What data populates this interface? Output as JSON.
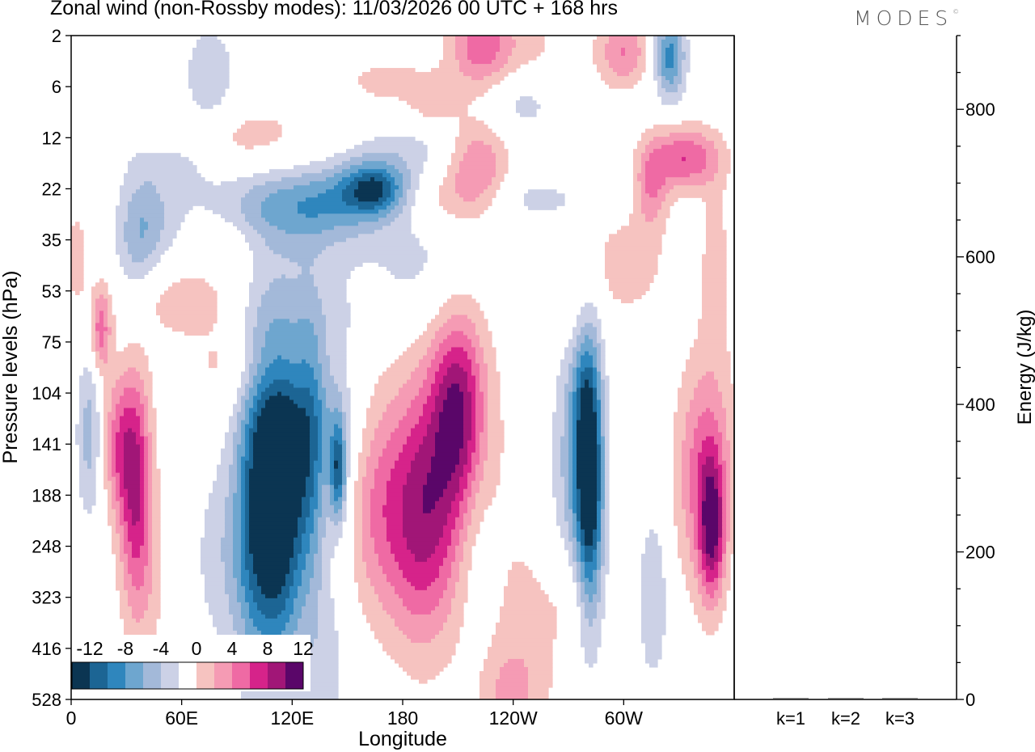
{
  "header": {
    "title": "Zonal wind (non-Rossby modes):  11/03/2026  00 UTC  + 168 hrs",
    "brand": "MODES",
    "brand_mark": "©"
  },
  "chart_data": [
    {
      "type": "heatmap",
      "title": "Zonal wind (non-Rossby modes):  11/03/2026  00 UTC  + 168 hrs",
      "xlabel": "Longitude",
      "ylabel": "Pressure levels (hPa)",
      "x_ticks": [
        {
          "label": "0",
          "lon": 0
        },
        {
          "label": "60E",
          "lon": 60
        },
        {
          "label": "120E",
          "lon": 120
        },
        {
          "label": "180",
          "lon": 180
        },
        {
          "label": "120W",
          "lon": 240
        },
        {
          "label": "60W",
          "lon": 300
        }
      ],
      "xlim": [
        0,
        360
      ],
      "y_levels": [
        "2",
        "6",
        "12",
        "22",
        "35",
        "53",
        "75",
        "104",
        "141",
        "188",
        "248",
        "323",
        "416",
        "528"
      ],
      "colorbar": {
        "labels": [
          "-12",
          "-8",
          "-4",
          "0",
          "4",
          "8",
          "12"
        ],
        "bins": [
          -14,
          -12,
          -10,
          -8,
          -6,
          -4,
          -2,
          2,
          4,
          6,
          8,
          10,
          12,
          14
        ],
        "colors": [
          "#0b3552",
          "#1c6594",
          "#2f86bd",
          "#6ea6cf",
          "#a3b9d9",
          "#ccd1e6",
          "#ffffff",
          "#f6c3c0",
          "#f59bb4",
          "#ef6aa4",
          "#d6238a",
          "#a11677",
          "#5a0669"
        ]
      },
      "blobs": [
        {
          "lon": 145,
          "lev": 8.5,
          "v": -10,
          "w": 3,
          "h": 0.7
        },
        {
          "lon": 114,
          "lev": 9.0,
          "v": -13,
          "w": 9,
          "h": 2.2
        },
        {
          "lon": 100,
          "lev": 8.8,
          "v": -7,
          "w": 8,
          "h": 2.4
        },
        {
          "lon": 130,
          "lev": 8.0,
          "v": -6,
          "w": 6,
          "h": 2.0
        },
        {
          "lon": 92,
          "lev": 10.2,
          "v": -4,
          "w": 18,
          "h": 1.5
        },
        {
          "lon": 120,
          "lev": 7.0,
          "v": -4,
          "w": 16,
          "h": 1.6
        },
        {
          "lon": 145,
          "lev": 7.3,
          "v": -3,
          "w": 10,
          "h": 1.8
        },
        {
          "lon": 138,
          "lev": 12.5,
          "v": -3,
          "w": 9,
          "h": 1.4
        },
        {
          "lon": 10,
          "lev": 7.8,
          "v": -5,
          "w": 5,
          "h": 1.2
        },
        {
          "lon": 282,
          "lev": 8.8,
          "v": -11,
          "w": 5,
          "h": 1.8
        },
        {
          "lon": 278,
          "lev": 7.3,
          "v": -6,
          "w": 6,
          "h": 1.8
        },
        {
          "lon": 272,
          "lev": 9.0,
          "v": -4,
          "w": 10,
          "h": 2.4
        },
        {
          "lon": 316,
          "lev": 11.0,
          "v": -4,
          "w": 6,
          "h": 1.2
        },
        {
          "lon": 220,
          "lev": 9.8,
          "v": -2.5,
          "w": 8,
          "h": 1.3
        },
        {
          "lon": 165,
          "lev": 3.0,
          "v": -9,
          "w": 12,
          "h": 0.35
        },
        {
          "lon": 150,
          "lev": 3.2,
          "v": -6,
          "w": 35,
          "h": 0.5
        },
        {
          "lon": 105,
          "lev": 3.6,
          "v": -4,
          "w": 35,
          "h": 0.6
        },
        {
          "lon": 190,
          "lev": 4.5,
          "v": -3,
          "w": 22,
          "h": 1.0
        },
        {
          "lon": 35,
          "lev": 4.3,
          "v": -4,
          "w": 8,
          "h": 1.2
        },
        {
          "lon": 245,
          "lev": 1.3,
          "v": -5,
          "w": 16,
          "h": 0.5
        },
        {
          "lon": 325,
          "lev": 0.4,
          "v": -9,
          "w": 6,
          "h": 0.6
        },
        {
          "lon": 75,
          "lev": 0.9,
          "v": -4,
          "w": 10,
          "h": 0.8
        },
        {
          "lon": 55,
          "lev": 2.5,
          "v": -3,
          "w": 14,
          "h": 0.4
        },
        {
          "lon": 185,
          "lev": 2.3,
          "v": -3,
          "w": 25,
          "h": 0.45
        },
        {
          "lon": 45,
          "lev": 3.7,
          "v": -3,
          "w": 10,
          "h": 0.6
        },
        {
          "lon": 250,
          "lev": 3.2,
          "v": -3,
          "w": 20,
          "h": 0.35
        },
        {
          "lon": 190,
          "lev": 9.5,
          "v": 8,
          "w": 13,
          "h": 1.7
        },
        {
          "lon": 165,
          "lev": 9.3,
          "v": 5,
          "w": 12,
          "h": 1.5
        },
        {
          "lon": 210,
          "lev": 7.3,
          "v": 9,
          "w": 10,
          "h": 1.4
        },
        {
          "lon": 205,
          "lev": 8.5,
          "v": 4,
          "w": 22,
          "h": 2.2
        },
        {
          "lon": 35,
          "lev": 8.6,
          "v": 9,
          "w": 6,
          "h": 1.6
        },
        {
          "lon": 25,
          "lev": 8.0,
          "v": 6,
          "w": 6,
          "h": 1.0
        },
        {
          "lon": 40,
          "lev": 10.5,
          "v": 3,
          "w": 10,
          "h": 1.5
        },
        {
          "lon": 16,
          "lev": 5.8,
          "v": 7,
          "w": 4,
          "h": 0.6
        },
        {
          "lon": 348,
          "lev": 9.7,
          "v": 10,
          "w": 5,
          "h": 1.0
        },
        {
          "lon": 340,
          "lev": 8.7,
          "v": 5,
          "w": 10,
          "h": 1.6
        },
        {
          "lon": 350,
          "lev": 8.0,
          "v": 3,
          "w": 10,
          "h": 1.4
        },
        {
          "lon": 250,
          "lev": 12.3,
          "v": 3,
          "w": 15,
          "h": 1.8
        },
        {
          "lon": 235,
          "lev": 13.0,
          "v": 3,
          "w": 10,
          "h": 0.7
        },
        {
          "lon": 270,
          "lev": 11.0,
          "v": 3,
          "w": 8,
          "h": 0.8
        },
        {
          "lon": 220,
          "lev": 2.5,
          "v": 6,
          "w": 12,
          "h": 0.6
        },
        {
          "lon": 195,
          "lev": 3.2,
          "v": 5,
          "w": 25,
          "h": 0.5
        },
        {
          "lon": 333,
          "lev": 2.4,
          "v": 8,
          "w": 14,
          "h": 0.45
        },
        {
          "lon": 315,
          "lev": 3.0,
          "v": 5,
          "w": 6,
          "h": 0.6
        },
        {
          "lon": 222,
          "lev": 0.2,
          "v": 6,
          "w": 12,
          "h": 0.6
        },
        {
          "lon": 300,
          "lev": 0.3,
          "v": 6,
          "w": 10,
          "h": 0.5
        },
        {
          "lon": 245,
          "lev": 0.7,
          "v": 3,
          "w": 22,
          "h": 1.0
        },
        {
          "lon": 85,
          "lev": 4.0,
          "v": 3,
          "w": 18,
          "h": 0.5
        },
        {
          "lon": 100,
          "lev": 6.5,
          "v": 3,
          "w": 30,
          "h": 0.6
        },
        {
          "lon": 55,
          "lev": 5.2,
          "v": 3,
          "w": 25,
          "h": 0.5
        },
        {
          "lon": 95,
          "lev": 2.0,
          "v": 3,
          "w": 30,
          "h": 0.5
        },
        {
          "lon": 195,
          "lev": 1.3,
          "v": 3,
          "w": 10,
          "h": 0.4
        },
        {
          "lon": 300,
          "lev": 4.5,
          "v": 3,
          "w": 18,
          "h": 0.8
        },
        {
          "lon": 170,
          "lev": 0.9,
          "v": 3,
          "w": 15,
          "h": 0.3
        },
        {
          "lon": 3,
          "lev": 4.3,
          "v": 3,
          "w": 4,
          "h": 0.8
        },
        {
          "lon": 350,
          "lev": 4.5,
          "v": 3,
          "w": 6,
          "h": 1.2
        },
        {
          "lon": 275,
          "lev": 5.5,
          "v": 3,
          "w": 6,
          "h": 0.8
        }
      ]
    },
    {
      "type": "bar",
      "categories": [
        "k=1",
        "k=2",
        "k=3"
      ],
      "values": [
        1,
        1,
        1
      ],
      "ylabel": "Energy (J/kg)",
      "ylim": [
        0,
        900
      ],
      "y_ticks": [
        0,
        200,
        400,
        600,
        800
      ]
    }
  ]
}
